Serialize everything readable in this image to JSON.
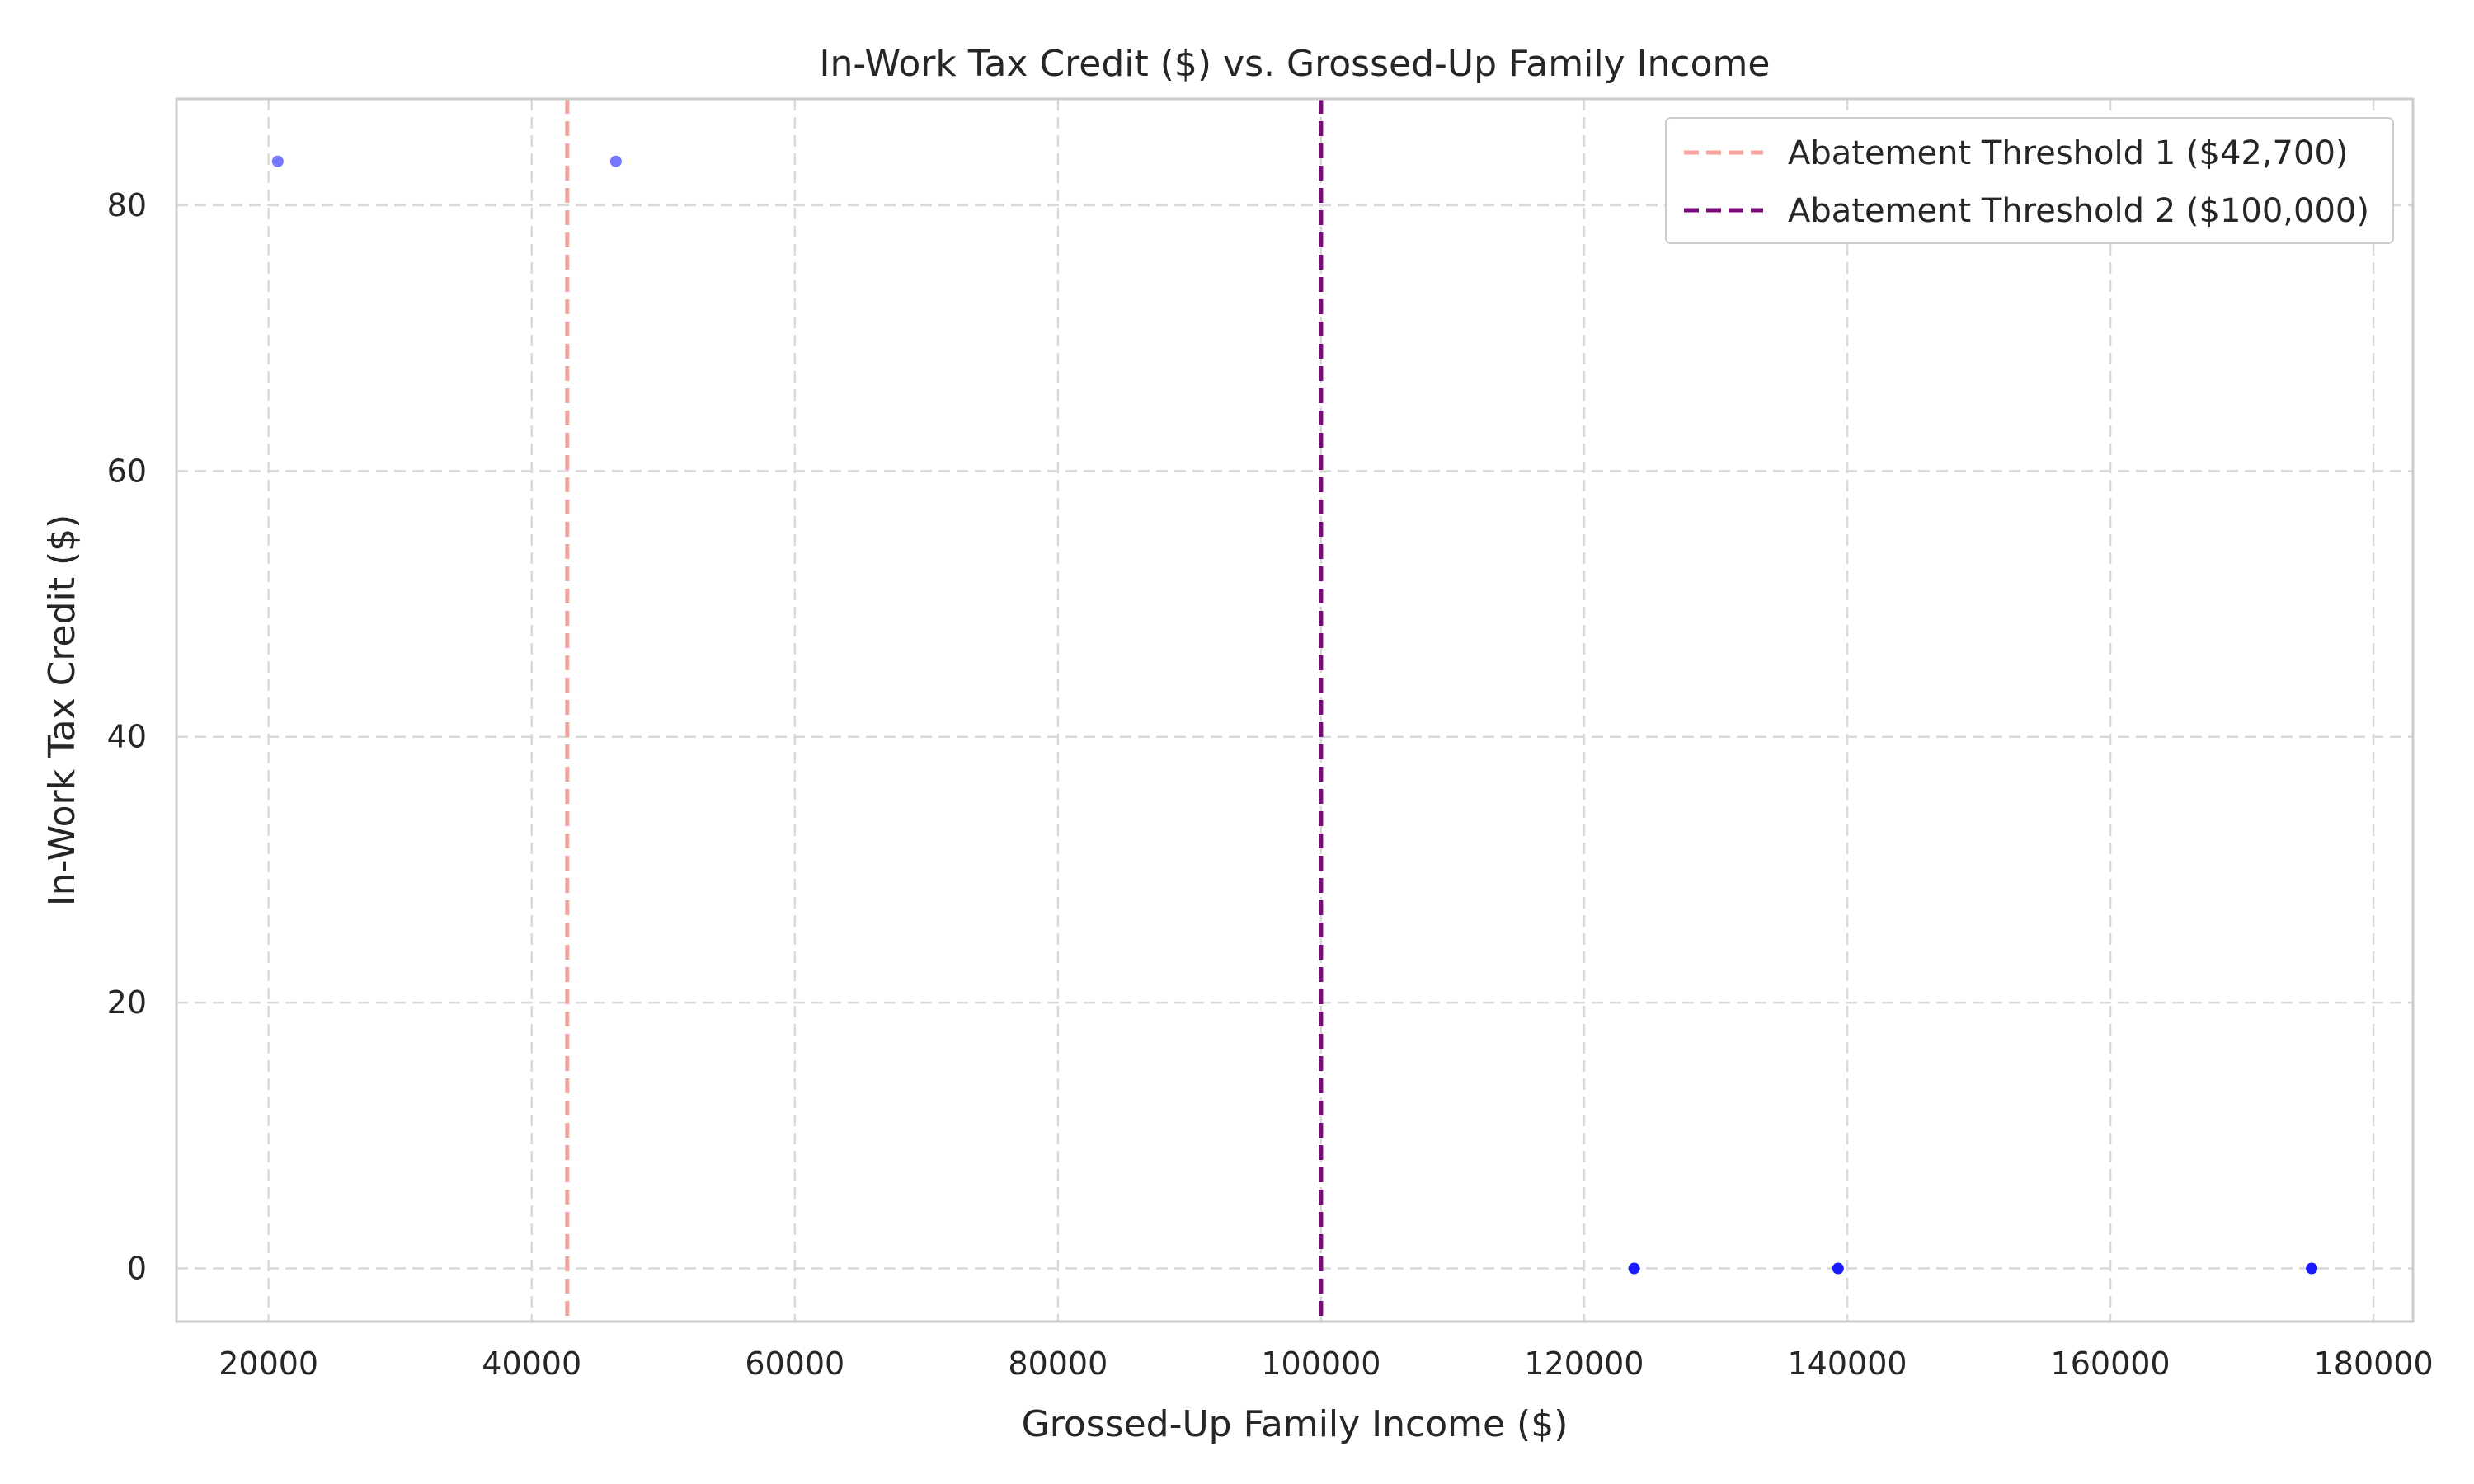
{
  "chart_data": {
    "type": "scatter",
    "title": "In-Work Tax Credit ($) vs. Grossed-Up Family Income",
    "xlabel": "Grossed-Up Family Income ($)",
    "ylabel": "In-Work Tax Credit ($)",
    "xlim": [
      13000,
      183000
    ],
    "ylim": [
      -4,
      88
    ],
    "xticks": [
      20000,
      40000,
      60000,
      80000,
      100000,
      120000,
      140000,
      160000,
      180000
    ],
    "xtick_labels": [
      "20000",
      "40000",
      "60000",
      "80000",
      "100000",
      "120000",
      "140000",
      "160000",
      "180000"
    ],
    "yticks": [
      0,
      20,
      40,
      60,
      80
    ],
    "ytick_labels": [
      "0",
      "20",
      "40",
      "60",
      "80"
    ],
    "grid": true,
    "legend_position": "top-right",
    "series": [
      {
        "color": "#1a1aff",
        "points": [
          {
            "x": 20700,
            "y": 83.3,
            "opacity": 0.6
          },
          {
            "x": 46400,
            "y": 83.3,
            "opacity": 0.6
          },
          {
            "x": 123800,
            "y": 0,
            "opacity": 1
          },
          {
            "x": 139300,
            "y": 0,
            "opacity": 1
          },
          {
            "x": 175300,
            "y": 0,
            "opacity": 1
          }
        ]
      }
    ],
    "reference_lines": [
      {
        "name": "Abatement Threshold 1 ($42,700)",
        "x": 42700,
        "color": "#f7a39c"
      },
      {
        "name": "Abatement Threshold 2 ($100,000)",
        "x": 100000,
        "color": "#7a0a7a"
      }
    ]
  }
}
